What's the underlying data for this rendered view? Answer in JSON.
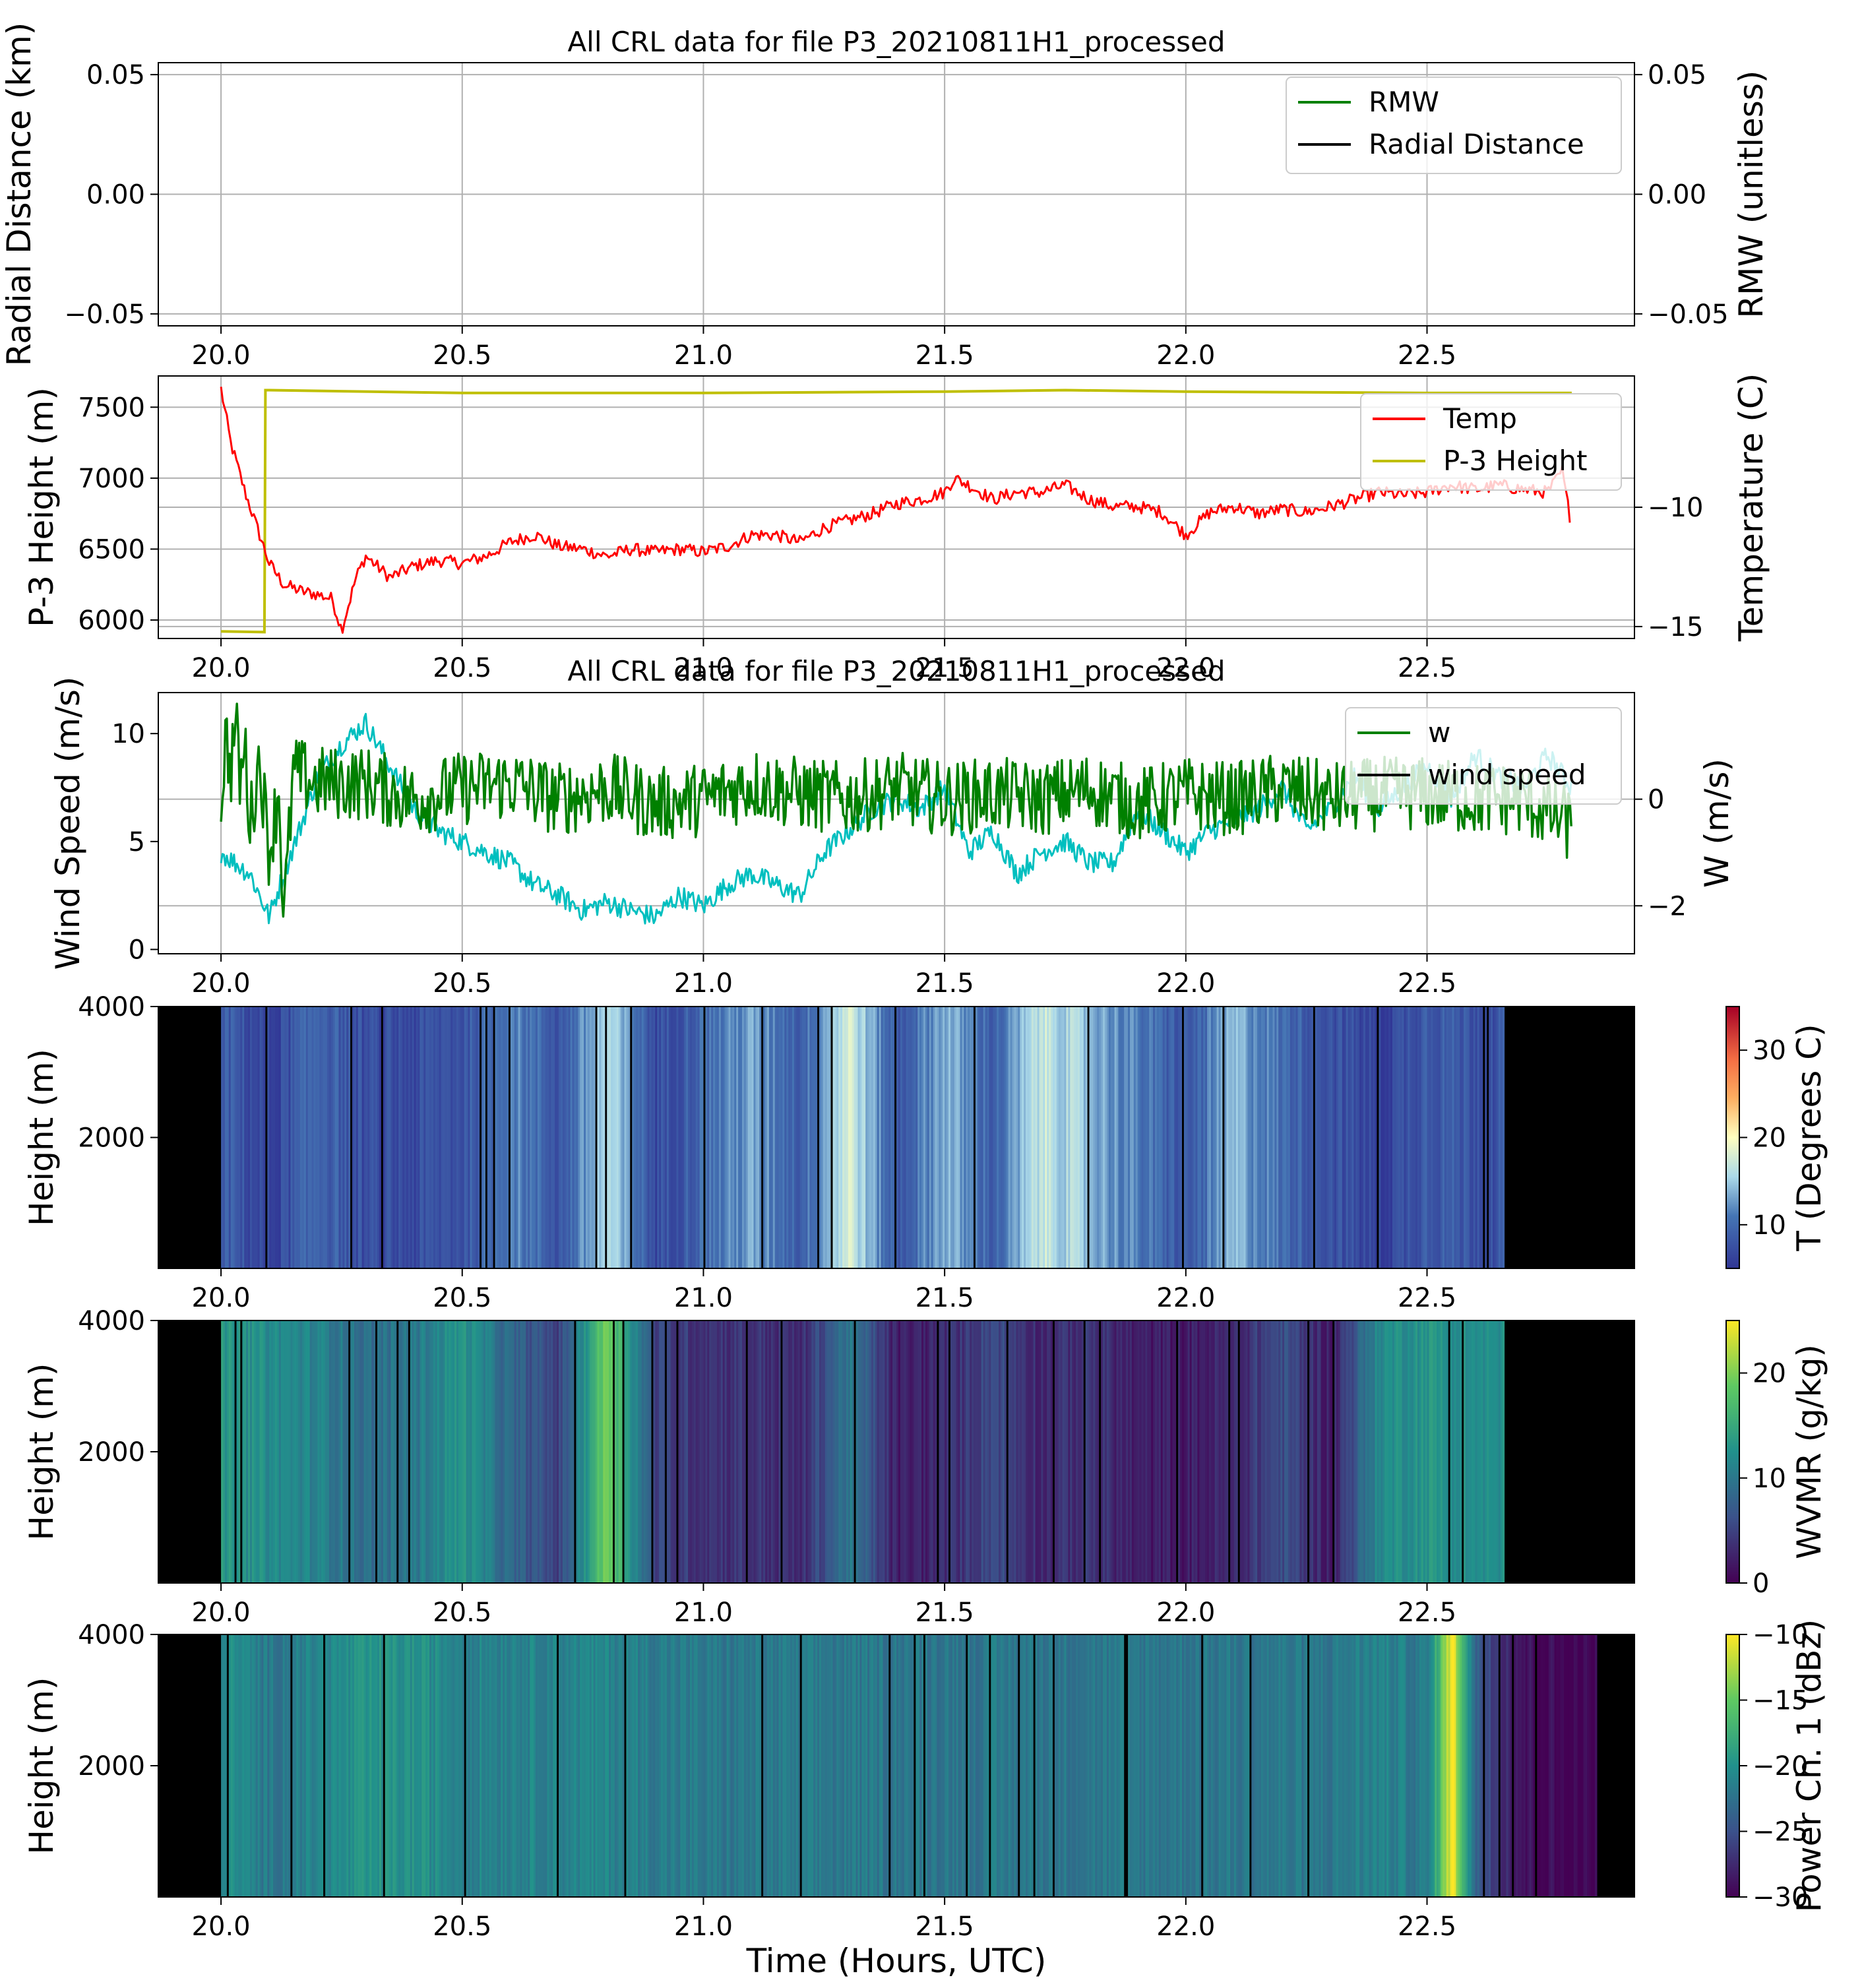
{
  "chart_data": [
    {
      "type": "line",
      "title": "All CRL data for file P3_20210811H1_processed",
      "xlabel": "",
      "ylabel": "Radial Distance (km)",
      "ylabel_right": "RMW (unitless)",
      "xlim": [
        19.87,
        22.93
      ],
      "ylim": [
        -0.055,
        0.055
      ],
      "ylim_right": [
        -0.055,
        0.055
      ],
      "x_ticks": [
        "20.0",
        "20.5",
        "21.0",
        "21.5",
        "22.0",
        "22.5"
      ],
      "y_ticks": [
        "0.05",
        "0.00",
        "−0.05"
      ],
      "y_ticks_right": [
        "0.05",
        "0.00",
        "−0.05"
      ],
      "grid": true,
      "legend_position": "top-right",
      "series": [
        {
          "name": "RMW",
          "color": "#008000",
          "x": [],
          "values": []
        },
        {
          "name": "Radial Distance",
          "color": "#000000",
          "x": [],
          "values": []
        }
      ]
    },
    {
      "type": "line",
      "title": "",
      "xlabel": "",
      "ylabel": "P-3 Height (m)",
      "ylabel_right": "Temperature (C)",
      "xlim": [
        19.87,
        22.93
      ],
      "ylim": [
        5870,
        7720
      ],
      "ylim_right": [
        -15.5,
        -4.5
      ],
      "x_ticks": [
        "20.0",
        "20.5",
        "21.0",
        "21.5",
        "22.0",
        "22.5"
      ],
      "y_ticks": [
        "7500",
        "7000",
        "6500",
        "6000"
      ],
      "y_ticks_right": [
        "−10",
        "−15"
      ],
      "grid": true,
      "legend_position": "top-right",
      "series": [
        {
          "name": "Temp",
          "color": "#ff0000",
          "axis": "left",
          "x": [
            20.0,
            20.02,
            20.05,
            20.08,
            20.1,
            20.13,
            20.17,
            20.2,
            20.23,
            20.25,
            20.28,
            20.3,
            20.35,
            20.4,
            20.45,
            20.5,
            20.55,
            20.6,
            20.65,
            20.7,
            20.75,
            20.8,
            20.85,
            20.9,
            20.95,
            21.0,
            21.05,
            21.1,
            21.15,
            21.2,
            21.25,
            21.3,
            21.35,
            21.4,
            21.45,
            21.5,
            21.52,
            21.55,
            21.6,
            21.65,
            21.7,
            21.75,
            21.8,
            21.85,
            21.9,
            21.95,
            22.0,
            22.05,
            22.1,
            22.15,
            22.2,
            22.25,
            22.3,
            22.35,
            22.4,
            22.45,
            22.5,
            22.55,
            22.6,
            22.65,
            22.7,
            22.75,
            22.78,
            22.8
          ],
          "values": [
            7630,
            7250,
            6900,
            6600,
            6400,
            6250,
            6200,
            6180,
            6150,
            5930,
            6300,
            6450,
            6300,
            6380,
            6420,
            6400,
            6450,
            6550,
            6600,
            6520,
            6500,
            6450,
            6500,
            6480,
            6500,
            6480,
            6520,
            6600,
            6600,
            6550,
            6650,
            6700,
            6750,
            6820,
            6850,
            6900,
            7000,
            6950,
            6850,
            6900,
            6900,
            6950,
            6850,
            6800,
            6800,
            6760,
            6600,
            6760,
            6800,
            6750,
            6780,
            6760,
            6800,
            6850,
            6900,
            6880,
            6900,
            6950,
            6920,
            6950,
            6920,
            6900,
            7050,
            6650
          ]
        },
        {
          "name": "P-3 Height",
          "color": "#bfbf00",
          "axis": "left",
          "x": [
            20.0,
            20.09,
            20.092,
            20.1,
            20.5,
            21.0,
            21.5,
            21.75,
            22.0,
            22.5,
            22.8
          ],
          "values": [
            5920,
            5915,
            7620,
            7620,
            7600,
            7600,
            7610,
            7620,
            7610,
            7600,
            7600
          ]
        }
      ]
    },
    {
      "type": "line",
      "title": "All CRL data for file P3_20210811H1_processed",
      "xlabel": "",
      "ylabel": "Wind Speed (m/s)",
      "ylabel_right": "W (m/s)",
      "xlim": [
        19.87,
        22.93
      ],
      "ylim": [
        -0.2,
        11.9
      ],
      "ylim_right": [
        -2.9,
        2.0
      ],
      "x_ticks": [
        "20.0",
        "20.5",
        "21.0",
        "21.5",
        "22.0",
        "22.5"
      ],
      "y_ticks": [
        "10",
        "5",
        "0"
      ],
      "y_ticks_right": [
        "0",
        "−2"
      ],
      "grid": true,
      "legend_position": "top-right",
      "series": [
        {
          "name": "w",
          "color": "#008000",
          "axis": "right"
        },
        {
          "name": "wind speed",
          "color": "#000000",
          "axis": "left"
        },
        {
          "name": "",
          "color": "#00bfbf",
          "axis": "left",
          "x": [
            20.0,
            20.03,
            20.06,
            20.08,
            20.1,
            20.13,
            20.17,
            20.2,
            20.25,
            20.3,
            20.35,
            20.4,
            20.45,
            20.5,
            20.55,
            20.6,
            20.65,
            20.7,
            20.75,
            20.8,
            20.85,
            20.9,
            20.95,
            21.0,
            21.05,
            21.1,
            21.15,
            21.2,
            21.25,
            21.3,
            21.35,
            21.4,
            21.45,
            21.5,
            21.55,
            21.6,
            21.65,
            21.7,
            21.75,
            21.8,
            21.85,
            21.9,
            21.95,
            22.0,
            22.05,
            22.1,
            22.15,
            22.2,
            22.25,
            22.3,
            22.35,
            22.4,
            22.45,
            22.5,
            22.55,
            22.6,
            22.65,
            22.7,
            22.75,
            22.8
          ],
          "values": [
            4.5,
            4.0,
            3.5,
            2.5,
            1.5,
            3.5,
            6.0,
            8.0,
            9.5,
            10.5,
            8.5,
            6.5,
            5.5,
            5.0,
            4.5,
            4.0,
            3.0,
            2.5,
            1.8,
            2.2,
            1.8,
            1.5,
            2.5,
            2.0,
            3.0,
            3.5,
            3.0,
            2.5,
            4.5,
            5.5,
            6.5,
            7.0,
            6.5,
            7.5,
            4.5,
            5.5,
            3.5,
            4.5,
            5.0,
            4.0,
            4.0,
            6.5,
            5.5,
            4.5,
            5.5,
            6.0,
            6.5,
            7.5,
            5.5,
            6.5,
            8.0,
            6.5,
            7.5,
            8.5,
            7.0,
            9.0,
            8.0,
            7.5,
            9.0,
            7.5
          ]
        },
        {
          "name": "",
          "color": "#008000",
          "axis": "right",
          "x": [
            20.0,
            20.01,
            20.02,
            20.03,
            20.04,
            20.05,
            20.06,
            20.08,
            20.1,
            20.12,
            20.13,
            20.15,
            20.2,
            20.3,
            20.4,
            20.5,
            20.6,
            20.7,
            20.8,
            20.9,
            21.0,
            21.1,
            21.2,
            21.3,
            21.4,
            21.5,
            21.6,
            21.7,
            21.8,
            21.9,
            22.0,
            22.1,
            22.2,
            22.3,
            22.4,
            22.5,
            22.6,
            22.7,
            22.8
          ],
          "values": [
            0.0,
            1.2,
            0.5,
            1.5,
            0.3,
            1.0,
            -0.5,
            0.8,
            -1.0,
            0.2,
            -2.3,
            0.5,
            0.3,
            0.3,
            0.0,
            0.2,
            0.3,
            0.0,
            0.2,
            -0.1,
            0.0,
            0.3,
            0.1,
            0.0,
            0.2,
            0.0,
            0.1,
            0.0,
            0.2,
            -0.1,
            0.1,
            0.0,
            0.2,
            0.0,
            0.1,
            0.1,
            0.0,
            0.0,
            -0.5
          ]
        }
      ]
    },
    {
      "type": "heatmap",
      "title": "",
      "ylabel": "Height (m)",
      "colorbar_label": "T (Degrees C)",
      "colorscale": "RdYlBu_r",
      "clim": [
        5,
        35
      ],
      "colorbar_ticks": [
        "30",
        "20",
        "10"
      ],
      "xlim": [
        19.87,
        22.93
      ],
      "ylim": [
        0,
        4000
      ],
      "x_ticks": [
        "20.0",
        "20.5",
        "21.0",
        "21.5",
        "22.0",
        "22.5"
      ],
      "y_ticks": [
        "4000",
        "2000"
      ],
      "no_data_color": "#000000",
      "data_x_range": [
        20.0,
        22.66
      ],
      "column_x": [
        20.0,
        20.1,
        20.2,
        20.3,
        20.4,
        20.5,
        20.6,
        20.7,
        20.8,
        20.9,
        21.0,
        21.1,
        21.2,
        21.3,
        21.4,
        21.5,
        21.6,
        21.7,
        21.8,
        21.9,
        22.0,
        22.1,
        22.2,
        22.3,
        22.4,
        22.5,
        22.6
      ],
      "column_values": [
        9,
        6,
        10,
        7,
        7,
        8,
        12,
        8,
        16,
        7,
        10,
        13,
        9,
        18,
        8,
        14,
        9,
        17,
        14,
        11,
        8,
        14,
        10,
        8,
        6,
        9,
        8
      ]
    },
    {
      "type": "heatmap",
      "title": "",
      "ylabel": "Height (m)",
      "colorbar_label": "WVMR (g/kg)",
      "colorscale": "viridis",
      "clim": [
        0,
        25
      ],
      "colorbar_ticks": [
        "20",
        "10",
        "0"
      ],
      "xlim": [
        19.87,
        22.93
      ],
      "ylim": [
        0,
        4000
      ],
      "x_ticks": [
        "20.0",
        "20.5",
        "21.0",
        "21.5",
        "22.0",
        "22.5"
      ],
      "y_ticks": [
        "4000",
        "2000"
      ],
      "no_data_color": "#000000",
      "data_x_range": [
        20.0,
        22.66
      ],
      "column_x": [
        20.0,
        20.1,
        20.2,
        20.3,
        20.4,
        20.5,
        20.6,
        20.7,
        20.8,
        20.9,
        21.0,
        21.1,
        21.2,
        21.3,
        21.4,
        21.5,
        21.6,
        21.7,
        21.8,
        21.9,
        22.0,
        22.1,
        22.2,
        22.3,
        22.4,
        22.5,
        22.6
      ],
      "column_values": [
        13,
        12,
        11,
        9,
        10,
        13,
        8,
        5,
        20,
        5,
        4,
        4,
        3,
        10,
        2,
        3,
        6,
        3,
        4,
        2,
        2,
        3,
        6,
        2,
        12,
        13,
        12
      ]
    },
    {
      "type": "heatmap",
      "title": "",
      "xlabel": "Time (Hours, UTC)",
      "ylabel": "Height (m)",
      "colorbar_label": "Power Ch. 1 (dBz)",
      "colorscale": "viridis",
      "clim": [
        -30,
        -10
      ],
      "colorbar_ticks": [
        "−10",
        "−15",
        "−20",
        "−25",
        "−30"
      ],
      "xlim": [
        19.87,
        22.93
      ],
      "ylim": [
        0,
        4000
      ],
      "x_ticks": [
        "20.0",
        "20.5",
        "21.0",
        "21.5",
        "22.0",
        "22.5"
      ],
      "y_ticks": [
        "4000",
        "2000"
      ],
      "no_data_color": "#000000",
      "data_x_range": [
        20.0,
        22.85
      ],
      "column_x": [
        20.0,
        20.1,
        20.2,
        20.3,
        20.4,
        20.5,
        20.6,
        20.7,
        20.8,
        20.9,
        21.0,
        21.1,
        21.2,
        21.3,
        21.4,
        21.5,
        21.6,
        21.7,
        21.8,
        21.9,
        22.0,
        22.1,
        22.2,
        22.3,
        22.4,
        22.5,
        22.55,
        22.6,
        22.7,
        22.8
      ],
      "column_values": [
        -20,
        -22,
        -21,
        -20,
        -20,
        -21,
        -21,
        -21,
        -21,
        -21.5,
        -22,
        -22,
        -22,
        -22,
        -22,
        -22,
        -22,
        -22,
        -22,
        -22,
        -22,
        -22,
        -22,
        -22,
        -21,
        -22,
        -10,
        -24,
        -29,
        -30
      ]
    }
  ]
}
